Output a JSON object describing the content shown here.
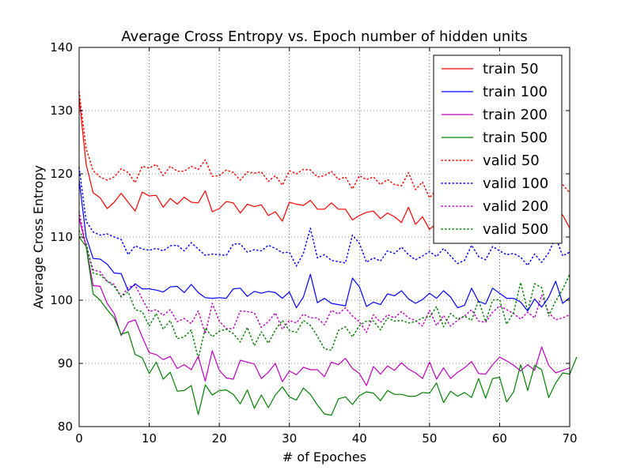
{
  "chart_data": {
    "type": "line",
    "title": "Average Cross Entropy vs. Epoch number of hidden units",
    "xlabel": "# of Epoches",
    "ylabel": "Average Cross Entropy",
    "xlim": [
      0,
      70
    ],
    "ylim": [
      80,
      140
    ],
    "xticks": [
      0,
      10,
      20,
      30,
      40,
      50,
      60,
      70
    ],
    "yticks": [
      80,
      90,
      100,
      110,
      120,
      130,
      140
    ],
    "grid": true,
    "legend_position": "top-right",
    "series": [
      {
        "name": "train 50",
        "color": "#ff0000",
        "style": "solid",
        "values": [
          132,
          121.5,
          117,
          116.2,
          114.5,
          115.5,
          116.9,
          115.5,
          114.1,
          117.1,
          116.5,
          116.6,
          114.7,
          116.1,
          115.2,
          116.3,
          115.5,
          115.4,
          117.3,
          114,
          114.5,
          115.6,
          115.4,
          113.8,
          115.2,
          114.8,
          115.1,
          113.4,
          114,
          112.5,
          115.5,
          115.2,
          115,
          115.8,
          114.4,
          114.4,
          115.4,
          114.4,
          114.4,
          112.7,
          113.4,
          113.9,
          114.1,
          112.9,
          113.8,
          113.2,
          112.3,
          114.7,
          112,
          113.2,
          111.2,
          112.2,
          112,
          111.8,
          112.3,
          111.8,
          112.3,
          112.2,
          112.4,
          113.3,
          112.4,
          112.3,
          112.4,
          111.5,
          112.4,
          111.9,
          112.5,
          112.4,
          113.1,
          113.5,
          111.4
        ]
      },
      {
        "name": "train 100",
        "color": "#0000ff",
        "style": "solid",
        "values": [
          119,
          110,
          106.6,
          106.5,
          105.7,
          104.3,
          104.2,
          101.5,
          102.6,
          101.8,
          101.8,
          101.6,
          101.3,
          102.1,
          102.2,
          101.2,
          102.5,
          101.2,
          100.4,
          100.3,
          100.4,
          100.3,
          101.8,
          101.9,
          100.6,
          101.4,
          101.1,
          101.4,
          101.2,
          100.3,
          101.3,
          98.8,
          100.5,
          104.1,
          99.6,
          100.3,
          99.5,
          99.3,
          99.1,
          103.5,
          102.1,
          99,
          99.7,
          99.3,
          101,
          100.7,
          101.5,
          100.2,
          99.5,
          100.1,
          101.1,
          100.3,
          101.5,
          100.5,
          98.8,
          99.2,
          101.9,
          99.8,
          99.4,
          101.9,
          101.1,
          100.3,
          100.3,
          99.7,
          98.3,
          100.2,
          98.9,
          100.5,
          103,
          99.5,
          100.4
        ]
      },
      {
        "name": "train 200",
        "color": "#bf00bf",
        "style": "solid",
        "values": [
          113,
          108.5,
          102.3,
          102.2,
          99.5,
          97.9,
          94.4,
          96.5,
          96.9,
          94.2,
          91.7,
          91.4,
          90.6,
          91.1,
          89.2,
          89.8,
          89,
          91.1,
          87.2,
          92,
          88.9,
          87.7,
          87.5,
          90.5,
          90.2,
          89.9,
          87.6,
          88.6,
          90,
          87.1,
          88.8,
          88.2,
          89.4,
          89,
          89,
          87.9,
          90.2,
          89.8,
          90.8,
          89.2,
          88.4,
          86.5,
          89.5,
          88.3,
          89.6,
          88.9,
          90.1,
          89.1,
          88.5,
          87.6,
          90.2,
          87.5,
          89.3,
          87.6,
          88.6,
          89.3,
          90.3,
          88.4,
          88.3,
          89.8,
          91,
          90.4,
          89.7,
          88.8,
          89.8,
          88.9,
          92.6,
          89.7,
          88.5,
          88.9,
          89.3
        ]
      },
      {
        "name": "train 500",
        "color": "#008000",
        "style": "solid",
        "values": [
          110,
          108.5,
          101,
          100,
          98.5,
          97.2,
          94.6,
          95,
          91.4,
          90.9,
          88.4,
          90.2,
          87.5,
          88.6,
          85.6,
          85.7,
          86.5,
          81.9,
          86.6,
          85,
          85.7,
          85.8,
          85.1,
          83.6,
          85.8,
          82.9,
          85,
          83,
          85,
          86.3,
          84.7,
          84.2,
          86.1,
          85.1,
          83.4,
          82,
          81.8,
          84.4,
          84.7,
          83.5,
          84.9,
          85.5,
          85.3,
          84.1,
          85.7,
          85.1,
          85.1,
          84.8,
          84.8,
          85.4,
          85.3,
          86.9,
          83.8,
          85.6,
          84.8,
          85.4,
          84.6,
          87.6,
          84.5,
          87.6,
          87.8,
          83.9,
          85.5,
          89.8,
          85.7,
          89.7,
          89,
          84.6,
          86.9,
          88.5,
          88.3,
          91
        ]
      },
      {
        "name": "valid 50",
        "color": "#ff0000",
        "style": "dotted",
        "values": [
          133,
          124,
          120.5,
          119.5,
          119,
          119.5,
          120.8,
          120.2,
          118.6,
          121.2,
          120.9,
          121.5,
          119.7,
          121.2,
          120.4,
          120.4,
          121.2,
          120.7,
          122.2,
          119.6,
          119.7,
          120.6,
          120.2,
          119,
          120.3,
          120.1,
          120.3,
          118.8,
          119.7,
          118.2,
          120.5,
          120,
          120.7,
          120.6,
          119.5,
          119.7,
          120.4,
          119.1,
          119.5,
          117.6,
          119.7,
          119.1,
          119.5,
          118.3,
          119.1,
          118.3,
          118.1,
          120.2,
          117.5,
          118.7,
          116.2,
          117.5,
          117.4,
          117.4,
          117.6,
          117.3,
          117.5,
          117.3,
          117.5,
          118.4,
          117.6,
          117.2,
          117.1,
          116.8,
          117.6,
          117.1,
          117.3,
          117.2,
          117.8,
          118.3,
          117
        ]
      },
      {
        "name": "valid 100",
        "color": "#0000ff",
        "style": "dotted",
        "values": [
          121,
          112.5,
          110.8,
          110.3,
          110.5,
          110,
          109.6,
          107.2,
          108.6,
          108.1,
          107.9,
          108.2,
          107.8,
          108.6,
          108.7,
          107.8,
          109.1,
          108.1,
          107.1,
          107.3,
          107.2,
          107.1,
          108.9,
          108.9,
          107.6,
          108,
          107.8,
          108.7,
          108.2,
          107.5,
          107.6,
          105.4,
          107.4,
          111.4,
          106.7,
          107.2,
          106.3,
          106.1,
          105.9,
          110.3,
          109,
          106,
          106.7,
          106.2,
          107.8,
          107.4,
          108.4,
          107.2,
          106.4,
          107,
          107.7,
          106.9,
          108.2,
          107,
          105.8,
          106.3,
          108.7,
          106.9,
          106.4,
          108.5,
          107.8,
          107.2,
          107.4,
          106.8,
          105.5,
          107.3,
          106,
          107.5,
          110,
          107,
          107.6
        ]
      },
      {
        "name": "valid 200",
        "color": "#bf00bf",
        "style": "dotted",
        "values": [
          114,
          108.5,
          104.8,
          104.5,
          103,
          102.5,
          100.5,
          102,
          102.4,
          100.2,
          98.2,
          98.5,
          97.6,
          98.5,
          96.6,
          97.1,
          96.3,
          98.3,
          94.7,
          99.5,
          96.7,
          95.5,
          95.5,
          98.3,
          98.2,
          98,
          95.7,
          96.6,
          98,
          95.4,
          96.8,
          96.4,
          97.8,
          97.2,
          97.2,
          96.1,
          98.4,
          97.8,
          98.8,
          97.5,
          96.6,
          94.9,
          97.7,
          96.5,
          97.7,
          97.2,
          98.2,
          97.2,
          96.8,
          95.9,
          98.4,
          96,
          97.6,
          95.9,
          96.8,
          97.5,
          98.5,
          96.7,
          96.5,
          98.1,
          99.1,
          98.5,
          97.9,
          97,
          98.1,
          97.2,
          100.8,
          98,
          96.9,
          97.2,
          97.7
        ]
      },
      {
        "name": "valid 500",
        "color": "#008000",
        "style": "dotted",
        "values": [
          111,
          109,
          104.3,
          104,
          103,
          102.2,
          100.6,
          101.3,
          98.5,
          98.2,
          95.9,
          97.9,
          95.4,
          96.8,
          93.9,
          94.2,
          95.3,
          90.8,
          95.6,
          94.2,
          95.1,
          95.4,
          94.7,
          93.4,
          95.7,
          92.8,
          95,
          93.2,
          95.3,
          96.8,
          95.2,
          94.9,
          96.8,
          96,
          94.3,
          92.3,
          92.1,
          95.2,
          95.8,
          94.2,
          96,
          96.7,
          96.7,
          95.3,
          97.2,
          96.7,
          96.8,
          96.4,
          96.6,
          97.2,
          97.3,
          99,
          95.8,
          97.9,
          97,
          97.5,
          96.8,
          100,
          96.6,
          100,
          100.1,
          96.2,
          98.1,
          102.8,
          98.3,
          102.6,
          102,
          97.5,
          99.9,
          101.7,
          104.1
        ]
      }
    ]
  }
}
